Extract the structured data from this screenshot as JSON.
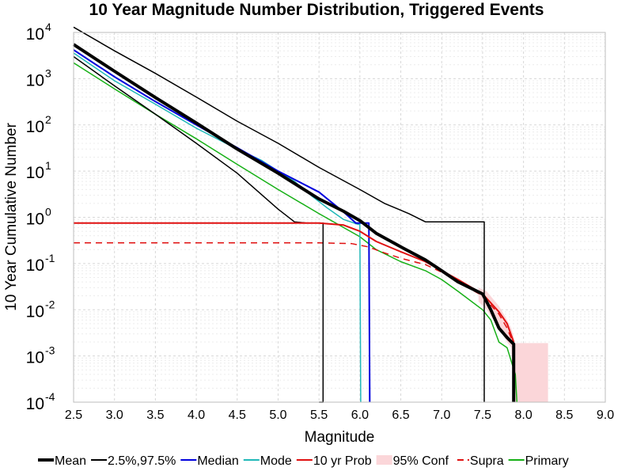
{
  "chart_data": {
    "type": "line",
    "title": "10 Year Magnitude Number Distribution, Triggered Events",
    "xlabel": "Magnitude",
    "ylabel": "10 Year Cumulative Number",
    "xlim": [
      2.5,
      9.0
    ],
    "ylim": [
      0.0001,
      10000
    ],
    "y_scale": "log",
    "grid": true,
    "legend_position": "bottom",
    "x_ticks": [
      "2.5",
      "3.0",
      "3.5",
      "4.0",
      "4.5",
      "5.0",
      "5.5",
      "6.0",
      "6.5",
      "7.0",
      "7.5",
      "8.0",
      "8.5",
      "9.0"
    ],
    "x_tick_values": [
      2.5,
      3.0,
      3.5,
      4.0,
      4.5,
      5.0,
      5.5,
      6.0,
      6.5,
      7.0,
      7.5,
      8.0,
      8.5,
      9.0
    ],
    "y_ticks": [
      {
        "base": "10",
        "exp": "-4",
        "value": 0.0001
      },
      {
        "base": "10",
        "exp": "-3",
        "value": 0.001
      },
      {
        "base": "10",
        "exp": "-2",
        "value": 0.01
      },
      {
        "base": "10",
        "exp": "-1",
        "value": 0.1
      },
      {
        "base": "10",
        "exp": "0",
        "value": 1
      },
      {
        "base": "10",
        "exp": "1",
        "value": 10
      },
      {
        "base": "10",
        "exp": "2",
        "value": 100
      },
      {
        "base": "10",
        "exp": "3",
        "value": 1000
      },
      {
        "base": "10",
        "exp": "4",
        "value": 10000
      }
    ],
    "legend": [
      {
        "label": "Mean",
        "color": "#000000",
        "style": "thick"
      },
      {
        "label": "2.5%,97.5%",
        "color": "#000000",
        "style": "solid"
      },
      {
        "label": "Median",
        "color": "#0000dd",
        "style": "solid"
      },
      {
        "label": "Mode",
        "color": "#20b8b8",
        "style": "solid"
      },
      {
        "label": "10 yr Prob",
        "color": "#e01010",
        "style": "solid"
      },
      {
        "label": "95% Conf",
        "color": "#fbd6d9",
        "style": "fill"
      },
      {
        "label": "Supra",
        "color": "#e01010",
        "style": "dashed"
      },
      {
        "label": "Primary",
        "color": "#16b016",
        "style": "solid"
      }
    ],
    "series": [
      {
        "name": "95% Conf",
        "role": "band",
        "color": "#fbd6d9",
        "x": [
          7.45,
          7.55,
          7.7,
          7.8,
          7.85,
          7.9,
          8.0,
          8.3
        ],
        "lower": [
          0.015,
          0.01,
          0.004,
          0.002,
          0.0015,
          0.0001,
          0.0001,
          0.0001
        ],
        "upper": [
          0.03,
          0.025,
          0.012,
          0.006,
          0.004,
          0.0019,
          0.0019,
          0.0019
        ]
      },
      {
        "name": "Primary",
        "color": "#16b016",
        "width": 1.5,
        "dash": "",
        "x": [
          2.5,
          3.0,
          3.5,
          4.0,
          4.5,
          5.0,
          5.5,
          6.0,
          6.2,
          6.5,
          6.8,
          7.0,
          7.2,
          7.5,
          7.6,
          7.7,
          7.8,
          7.9,
          7.92
        ],
        "y": [
          2200,
          600,
          170,
          50,
          14,
          4.0,
          1.2,
          0.38,
          0.2,
          0.11,
          0.07,
          0.045,
          0.025,
          0.01,
          0.006,
          0.002,
          0.0015,
          0.0004,
          0.0001
        ]
      },
      {
        "name": "Supra",
        "color": "#e01010",
        "width": 1.5,
        "dash": "8 6",
        "x": [
          2.5,
          3.0,
          4.0,
          5.0,
          5.5,
          5.9,
          6.1,
          6.3,
          6.5,
          6.8,
          7.0,
          7.2,
          7.5,
          7.7,
          7.8,
          7.88
        ],
        "y": [
          0.28,
          0.28,
          0.28,
          0.28,
          0.28,
          0.27,
          0.23,
          0.17,
          0.13,
          0.095,
          0.065,
          0.04,
          0.02,
          0.008,
          0.004,
          0.0018
        ]
      },
      {
        "name": "2.5%",
        "color": "#000000",
        "width": 1.5,
        "dash": "",
        "x": [
          2.5,
          3.0,
          3.5,
          4.0,
          4.5,
          5.0,
          5.2,
          5.35,
          5.55,
          5.55,
          5.5
        ],
        "y": [
          3000,
          700,
          170,
          40,
          9,
          1.5,
          0.8,
          0.75,
          0.75,
          0.0001,
          0.0001
        ]
      },
      {
        "name": "97.5%",
        "color": "#000000",
        "width": 1.5,
        "dash": "",
        "x": [
          2.5,
          3.0,
          3.5,
          4.0,
          4.5,
          5.0,
          5.5,
          6.0,
          6.3,
          6.6,
          6.8,
          7.5,
          7.52,
          7.52
        ],
        "y": [
          13000,
          4000,
          1300,
          400,
          120,
          40,
          12,
          4,
          2,
          1.2,
          0.8,
          0.8,
          0.8,
          0.0001
        ]
      },
      {
        "name": "Mode",
        "color": "#20b8b8",
        "width": 1.5,
        "dash": "",
        "x": [
          2.5,
          3.0,
          3.5,
          4.0,
          4.5,
          4.8,
          5.0,
          5.2,
          5.4,
          5.6,
          5.8,
          5.98,
          6.0,
          6.01
        ],
        "y": [
          3600,
          900,
          280,
          85,
          30,
          17,
          10,
          6,
          3,
          1.6,
          0.9,
          0.7,
          0.7,
          0.0001
        ]
      },
      {
        "name": "Median",
        "color": "#0000dd",
        "width": 2,
        "dash": "",
        "x": [
          2.5,
          3.0,
          3.5,
          4.0,
          4.5,
          5.0,
          5.5,
          5.8,
          5.95,
          6.1,
          6.11,
          6.12
        ],
        "y": [
          4200,
          1100,
          320,
          100,
          32,
          10,
          3.5,
          1.3,
          0.75,
          0.75,
          0.75,
          0.0001
        ]
      },
      {
        "name": "10 yr Prob",
        "color": "#e01010",
        "width": 2,
        "dash": "",
        "x": [
          2.5,
          3.0,
          4.0,
          5.0,
          5.5,
          5.8,
          6.0,
          6.2,
          6.5,
          6.8,
          7.0,
          7.2,
          7.5,
          7.7,
          7.8,
          7.88
        ],
        "y": [
          0.75,
          0.75,
          0.75,
          0.75,
          0.75,
          0.68,
          0.5,
          0.3,
          0.18,
          0.11,
          0.07,
          0.045,
          0.022,
          0.009,
          0.005,
          0.002
        ]
      },
      {
        "name": "Mean",
        "color": "#000000",
        "width": 4,
        "dash": "",
        "x": [
          2.5,
          3.0,
          3.5,
          4.0,
          4.5,
          5.0,
          5.5,
          5.8,
          6.0,
          6.2,
          6.5,
          6.8,
          7.0,
          7.2,
          7.5,
          7.6,
          7.7,
          7.8,
          7.88,
          7.88
        ],
        "y": [
          5500,
          1450,
          390,
          110,
          30,
          9,
          2.5,
          1.35,
          0.85,
          0.45,
          0.23,
          0.12,
          0.07,
          0.04,
          0.022,
          0.01,
          0.004,
          0.0025,
          0.0018,
          0.0001
        ]
      }
    ]
  }
}
